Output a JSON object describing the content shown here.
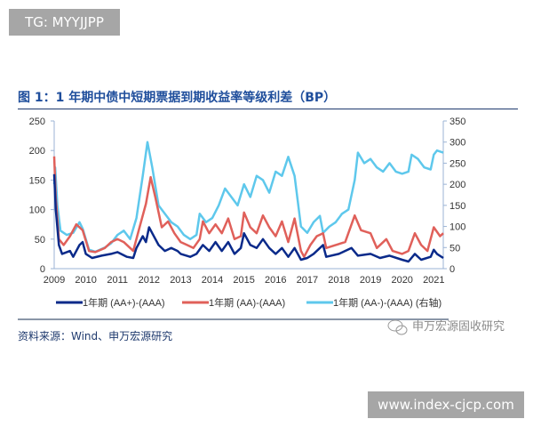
{
  "overlay": {
    "tag": "TG: MYYJJPP",
    "site": "www.index-cjcp.com",
    "wechat_watermark": "申万宏源固收研究",
    "wechat_icon": "wechat-icon"
  },
  "figure": {
    "title": "图 1：1 年期中债中短期票据到期收益率等级利差（BP）",
    "source": "资料来源：Wind、申万宏源研究"
  },
  "chart_data": {
    "type": "line",
    "title": "图 1：1 年期中债中短期票据到期收益率等级利差（BP）",
    "xlabel": "",
    "ylabel": "",
    "xlim": [
      2009,
      2021.3
    ],
    "ylim": [
      0,
      250
    ],
    "y2lim": [
      0,
      350
    ],
    "x_ticks": [
      "2009",
      "2010",
      "2011",
      "2012",
      "2013",
      "2014",
      "2015",
      "2016",
      "2017",
      "2018",
      "2019",
      "2020",
      "2021"
    ],
    "y_ticks": [
      "0",
      "50",
      "100",
      "150",
      "200",
      "250"
    ],
    "y2_ticks": [
      "0",
      "50",
      "100",
      "150",
      "200",
      "250",
      "300",
      "350"
    ],
    "grid": false,
    "legend": "bottom",
    "series": [
      {
        "name": "1年期 (AA+)-(AAA)",
        "axis": "left",
        "color": "#0a2a8a",
        "x": [
          2009.0,
          2009.05,
          2009.15,
          2009.25,
          2009.5,
          2009.6,
          2009.8,
          2009.9,
          2010.0,
          2010.2,
          2010.5,
          2010.8,
          2011.0,
          2011.3,
          2011.5,
          2011.6,
          2011.8,
          2011.9,
          2012.0,
          2012.1,
          2012.3,
          2012.5,
          2012.7,
          2012.9,
          2013.0,
          2013.3,
          2013.5,
          2013.7,
          2013.9,
          2014.1,
          2014.3,
          2014.5,
          2014.7,
          2014.9,
          2015.0,
          2015.2,
          2015.4,
          2015.6,
          2015.8,
          2016.0,
          2016.2,
          2016.4,
          2016.6,
          2016.8,
          2017.0,
          2017.2,
          2017.5,
          2017.6,
          2018.0,
          2018.4,
          2018.6,
          2019.0,
          2019.3,
          2019.6,
          2020.0,
          2020.2,
          2020.4,
          2020.6,
          2020.9,
          2021.0,
          2021.1,
          2021.3
        ],
        "y": [
          160,
          100,
          40,
          25,
          30,
          20,
          40,
          45,
          25,
          18,
          22,
          25,
          28,
          20,
          18,
          35,
          55,
          45,
          70,
          60,
          40,
          30,
          35,
          30,
          25,
          20,
          25,
          40,
          30,
          45,
          30,
          45,
          25,
          35,
          60,
          40,
          35,
          50,
          35,
          25,
          35,
          20,
          35,
          15,
          18,
          25,
          40,
          20,
          25,
          35,
          22,
          25,
          18,
          22,
          15,
          12,
          25,
          15,
          20,
          32,
          25,
          18
        ]
      },
      {
        "name": "1年期 (AA)-(AAA)",
        "axis": "left",
        "color": "#e0605a",
        "x": [
          2009.0,
          2009.05,
          2009.15,
          2009.3,
          2009.5,
          2009.7,
          2009.9,
          2010.1,
          2010.3,
          2010.6,
          2010.8,
          2011.0,
          2011.2,
          2011.5,
          2011.7,
          2011.9,
          2012.05,
          2012.2,
          2012.4,
          2012.6,
          2012.8,
          2013.0,
          2013.2,
          2013.4,
          2013.6,
          2013.7,
          2013.9,
          2014.1,
          2014.3,
          2014.5,
          2014.7,
          2014.9,
          2015.0,
          2015.2,
          2015.4,
          2015.6,
          2015.8,
          2016.0,
          2016.2,
          2016.4,
          2016.6,
          2016.8,
          2016.9,
          2017.1,
          2017.3,
          2017.5,
          2017.6,
          2017.9,
          2018.2,
          2018.5,
          2018.7,
          2019.0,
          2019.2,
          2019.5,
          2019.7,
          2020.0,
          2020.2,
          2020.4,
          2020.6,
          2020.8,
          2021.0,
          2021.2,
          2021.3
        ],
        "y": [
          190,
          120,
          50,
          40,
          55,
          75,
          65,
          30,
          28,
          35,
          45,
          50,
          45,
          30,
          70,
          110,
          155,
          120,
          70,
          80,
          60,
          45,
          40,
          35,
          50,
          80,
          60,
          75,
          60,
          85,
          50,
          55,
          95,
          70,
          60,
          90,
          70,
          55,
          80,
          45,
          85,
          30,
          20,
          40,
          55,
          60,
          35,
          40,
          45,
          90,
          65,
          60,
          35,
          50,
          30,
          25,
          30,
          60,
          40,
          30,
          70,
          55,
          60
        ]
      },
      {
        "name": "1年期 (AA-)-(AAA) (右轴)",
        "axis": "right",
        "color": "#5ec8ec",
        "x": [
          2009.0,
          2009.03,
          2009.1,
          2009.2,
          2009.4,
          2009.6,
          2009.8,
          2009.9,
          2010.1,
          2010.3,
          2010.6,
          2010.8,
          2011.0,
          2011.2,
          2011.4,
          2011.6,
          2011.8,
          2011.95,
          2012.1,
          2012.3,
          2012.5,
          2012.7,
          2012.9,
          2013.1,
          2013.3,
          2013.5,
          2013.6,
          2013.8,
          2014.0,
          2014.2,
          2014.4,
          2014.6,
          2014.8,
          2014.9,
          2015.0,
          2015.2,
          2015.4,
          2015.6,
          2015.8,
          2016.0,
          2016.2,
          2016.4,
          2016.6,
          2016.7,
          2016.8,
          2017.0,
          2017.2,
          2017.4,
          2017.5,
          2017.7,
          2017.9,
          2018.1,
          2018.3,
          2018.5,
          2018.6,
          2018.8,
          2019.0,
          2019.2,
          2019.4,
          2019.6,
          2019.8,
          2020.0,
          2020.2,
          2020.3,
          2020.5,
          2020.7,
          2020.9,
          2021.0,
          2021.1,
          2021.3
        ],
        "y": [
          200,
          240,
          150,
          90,
          80,
          85,
          110,
          95,
          45,
          40,
          50,
          60,
          80,
          90,
          70,
          120,
          220,
          300,
          240,
          150,
          130,
          110,
          100,
          80,
          70,
          80,
          130,
          110,
          120,
          150,
          190,
          170,
          150,
          175,
          200,
          170,
          220,
          210,
          180,
          230,
          220,
          265,
          220,
          160,
          100,
          85,
          110,
          125,
          85,
          100,
          110,
          130,
          140,
          210,
          275,
          250,
          260,
          240,
          230,
          250,
          230,
          225,
          230,
          270,
          260,
          240,
          235,
          270,
          280,
          275
        ]
      }
    ]
  }
}
